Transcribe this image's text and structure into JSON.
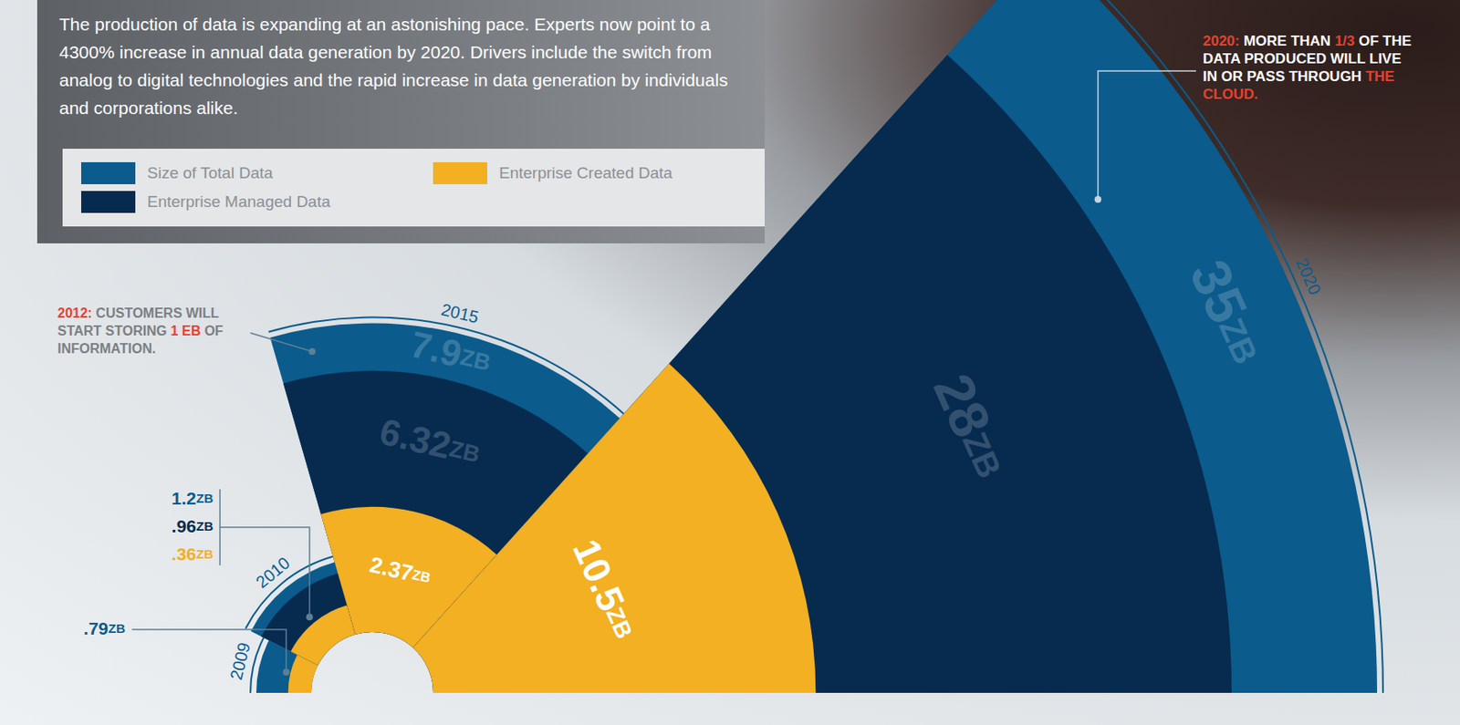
{
  "chart_data": {
    "type": "radial",
    "subtitle": "The production of data is expanding at an astonishing pace. Experts now point to a 4300% increase in annual data generation by 2020. Drivers include the switch from analog to digital technologies and the rapid increase in data generation by individuals and corporations alike.",
    "categories": [
      "2009",
      "2010",
      "2015",
      "2020"
    ],
    "series": [
      {
        "name": "Size of Total Data",
        "color": "#0b5b8c",
        "values": [
          0.79,
          1.2,
          7.9,
          35
        ],
        "value_labels": [
          ".79ZB",
          "1.2ZB",
          "7.9ZB",
          "35ZB"
        ]
      },
      {
        "name": "Enterprise Managed Data",
        "color": "#062b4f",
        "values": [
          null,
          0.96,
          6.32,
          28
        ],
        "value_labels": [
          null,
          ".96ZB",
          "6.32ZB",
          "28ZB"
        ]
      },
      {
        "name": "Enterprise Created Data",
        "color": "#f2b022",
        "values": [
          0.25,
          0.36,
          2.37,
          10.5
        ],
        "value_labels": [
          null,
          ".36ZB",
          "2.37ZB",
          "10.5ZB"
        ]
      }
    ],
    "data_labels": true,
    "legend": "top left",
    "annotations": [
      {
        "text": [
          "2012:",
          " CUSTOMERS WILL START STORING ",
          "1 EB",
          " OF INFORMATION."
        ]
      },
      {
        "text": [
          "2020:",
          " MORE THAN ",
          "1/3",
          " OF THE DATA PRODUCED WILL LIVE IN OR PASS THROUGH ",
          "THE CLOUD."
        ]
      }
    ]
  }
}
